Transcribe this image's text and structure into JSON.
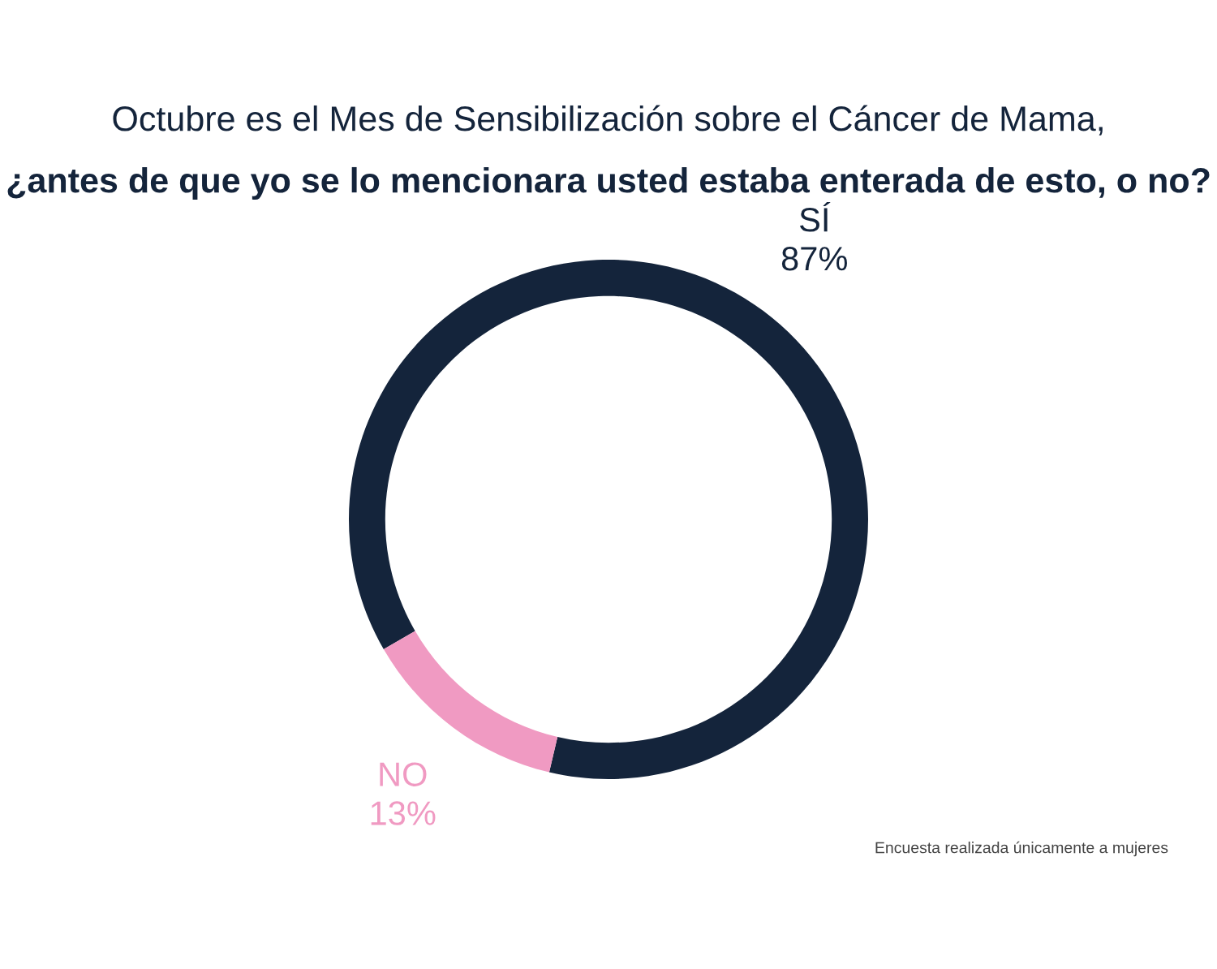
{
  "chart_data": {
    "type": "donut",
    "title": "Octubre es el Mes de Sensibilización sobre el Cáncer de Mama,",
    "subtitle": "¿antes de que yo se lo mencionara usted estaba enterada de esto, o no?",
    "categories": [
      "SÍ",
      "NO"
    ],
    "values": [
      87,
      13
    ],
    "colors": [
      "#14243b",
      "#f09ac2"
    ],
    "value_labels": [
      "87%",
      "13%"
    ],
    "annotations": [
      "Encuesta realizada únicamente a mujeres"
    ]
  }
}
